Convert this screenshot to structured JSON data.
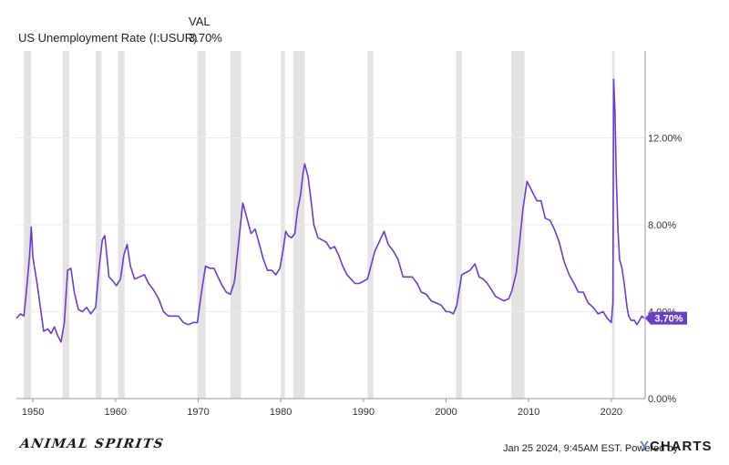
{
  "legend": {
    "header": "VAL",
    "series_name": "US Unemployment Rate (I:USUR)",
    "series_value": "3.70%"
  },
  "footer": {
    "timestamp_text": "Jan 25 2024, 9:45AM EST. Powered by",
    "ycharts_y": "Y",
    "ycharts_rest": "CHARTS",
    "brand_text": "ANIMAL SPIRITS"
  },
  "colors": {
    "line": "#6a3fc4",
    "recession": "#e3e3e3",
    "badge": "#6a3fc4",
    "grid": "#ececec"
  },
  "chart_data": {
    "type": "line",
    "x_unit": "year",
    "xlim": [
      1948,
      2024.1
    ],
    "ylim": [
      0,
      16
    ],
    "x_ticks": [
      {
        "label": "1950",
        "value": 1950
      },
      {
        "label": "1960",
        "value": 1960
      },
      {
        "label": "1970",
        "value": 1970
      },
      {
        "label": "1980",
        "value": 1980
      },
      {
        "label": "1990",
        "value": 1990
      },
      {
        "label": "2000",
        "value": 2000
      },
      {
        "label": "2010",
        "value": 2010
      },
      {
        "label": "2020",
        "value": 2020
      }
    ],
    "y_ticks": [
      {
        "label": "0.00%",
        "value": 0
      },
      {
        "label": "4.00%",
        "value": 4
      },
      {
        "label": "8.00%",
        "value": 8
      },
      {
        "label": "12.00%",
        "value": 12
      }
    ],
    "last_value_label": "3.70%",
    "last_value": 3.7,
    "recessions": [
      [
        1948.9,
        1949.8
      ],
      [
        1953.6,
        1954.4
      ],
      [
        1957.6,
        1958.3
      ],
      [
        1960.3,
        1961.1
      ],
      [
        1969.9,
        1970.9
      ],
      [
        1973.9,
        1975.2
      ],
      [
        1980.0,
        1980.5
      ],
      [
        1981.5,
        1982.9
      ],
      [
        1990.5,
        1991.2
      ],
      [
        2001.2,
        2001.9
      ],
      [
        2007.9,
        2009.5
      ],
      [
        2020.1,
        2020.4
      ]
    ],
    "series": [
      {
        "points": [
          [
            1948.0,
            3.7
          ],
          [
            1948.5,
            3.9
          ],
          [
            1948.9,
            3.8
          ],
          [
            1949.2,
            4.9
          ],
          [
            1949.6,
            6.6
          ],
          [
            1949.8,
            7.9
          ],
          [
            1950.0,
            6.5
          ],
          [
            1950.5,
            5.3
          ],
          [
            1950.9,
            4.2
          ],
          [
            1951.3,
            3.1
          ],
          [
            1951.8,
            3.2
          ],
          [
            1952.2,
            3.0
          ],
          [
            1952.6,
            3.3
          ],
          [
            1953.0,
            2.9
          ],
          [
            1953.4,
            2.6
          ],
          [
            1953.8,
            3.5
          ],
          [
            1954.2,
            5.9
          ],
          [
            1954.6,
            6.0
          ],
          [
            1955.0,
            4.9
          ],
          [
            1955.5,
            4.1
          ],
          [
            1956.0,
            4.0
          ],
          [
            1956.5,
            4.2
          ],
          [
            1957.0,
            3.9
          ],
          [
            1957.6,
            4.2
          ],
          [
            1958.0,
            6.0
          ],
          [
            1958.4,
            7.3
          ],
          [
            1958.7,
            7.5
          ],
          [
            1959.2,
            5.6
          ],
          [
            1959.7,
            5.4
          ],
          [
            1960.1,
            5.2
          ],
          [
            1960.6,
            5.5
          ],
          [
            1961.0,
            6.6
          ],
          [
            1961.4,
            7.1
          ],
          [
            1961.8,
            6.1
          ],
          [
            1962.3,
            5.5
          ],
          [
            1962.9,
            5.6
          ],
          [
            1963.5,
            5.7
          ],
          [
            1964.0,
            5.3
          ],
          [
            1964.6,
            5.0
          ],
          [
            1965.2,
            4.6
          ],
          [
            1965.8,
            4.0
          ],
          [
            1966.4,
            3.8
          ],
          [
            1967.0,
            3.8
          ],
          [
            1967.6,
            3.8
          ],
          [
            1968.2,
            3.5
          ],
          [
            1968.8,
            3.4
          ],
          [
            1969.4,
            3.5
          ],
          [
            1969.9,
            3.5
          ],
          [
            1970.4,
            4.9
          ],
          [
            1970.9,
            6.1
          ],
          [
            1971.4,
            6.0
          ],
          [
            1971.9,
            6.0
          ],
          [
            1972.4,
            5.6
          ],
          [
            1972.9,
            5.2
          ],
          [
            1973.4,
            4.9
          ],
          [
            1973.9,
            4.8
          ],
          [
            1974.4,
            5.4
          ],
          [
            1974.9,
            7.2
          ],
          [
            1975.4,
            9.0
          ],
          [
            1975.9,
            8.3
          ],
          [
            1976.4,
            7.6
          ],
          [
            1976.9,
            7.8
          ],
          [
            1977.4,
            7.1
          ],
          [
            1977.9,
            6.4
          ],
          [
            1978.4,
            5.9
          ],
          [
            1978.9,
            5.9
          ],
          [
            1979.4,
            5.7
          ],
          [
            1979.9,
            6.0
          ],
          [
            1980.3,
            6.9
          ],
          [
            1980.6,
            7.7
          ],
          [
            1980.9,
            7.5
          ],
          [
            1981.3,
            7.4
          ],
          [
            1981.7,
            7.6
          ],
          [
            1982.0,
            8.6
          ],
          [
            1982.4,
            9.4
          ],
          [
            1982.7,
            10.4
          ],
          [
            1982.9,
            10.8
          ],
          [
            1983.3,
            10.2
          ],
          [
            1983.7,
            9.0
          ],
          [
            1984.0,
            8.0
          ],
          [
            1984.5,
            7.4
          ],
          [
            1985.0,
            7.3
          ],
          [
            1985.5,
            7.2
          ],
          [
            1986.0,
            6.9
          ],
          [
            1986.5,
            7.0
          ],
          [
            1987.0,
            6.6
          ],
          [
            1987.5,
            6.1
          ],
          [
            1988.0,
            5.7
          ],
          [
            1988.5,
            5.5
          ],
          [
            1989.0,
            5.3
          ],
          [
            1989.5,
            5.3
          ],
          [
            1990.0,
            5.4
          ],
          [
            1990.5,
            5.5
          ],
          [
            1990.9,
            6.1
          ],
          [
            1991.4,
            6.8
          ],
          [
            1991.9,
            7.2
          ],
          [
            1992.5,
            7.7
          ],
          [
            1993.0,
            7.1
          ],
          [
            1993.6,
            6.8
          ],
          [
            1994.2,
            6.4
          ],
          [
            1994.8,
            5.6
          ],
          [
            1995.3,
            5.6
          ],
          [
            1995.9,
            5.6
          ],
          [
            1996.5,
            5.3
          ],
          [
            1997.0,
            4.9
          ],
          [
            1997.6,
            4.8
          ],
          [
            1998.2,
            4.5
          ],
          [
            1998.8,
            4.4
          ],
          [
            1999.4,
            4.3
          ],
          [
            2000.0,
            4.0
          ],
          [
            2000.4,
            4.0
          ],
          [
            2000.9,
            3.9
          ],
          [
            2001.3,
            4.3
          ],
          [
            2001.9,
            5.7
          ],
          [
            2002.4,
            5.8
          ],
          [
            2002.9,
            5.9
          ],
          [
            2003.5,
            6.2
          ],
          [
            2004.0,
            5.6
          ],
          [
            2004.5,
            5.5
          ],
          [
            2005.0,
            5.3
          ],
          [
            2005.5,
            5.0
          ],
          [
            2006.0,
            4.7
          ],
          [
            2006.5,
            4.6
          ],
          [
            2007.0,
            4.5
          ],
          [
            2007.6,
            4.6
          ],
          [
            2008.0,
            5.0
          ],
          [
            2008.5,
            5.8
          ],
          [
            2008.9,
            7.2
          ],
          [
            2009.3,
            8.7
          ],
          [
            2009.8,
            10.0
          ],
          [
            2010.2,
            9.7
          ],
          [
            2010.6,
            9.4
          ],
          [
            2011.0,
            9.1
          ],
          [
            2011.5,
            9.1
          ],
          [
            2012.0,
            8.3
          ],
          [
            2012.6,
            8.2
          ],
          [
            2013.1,
            7.8
          ],
          [
            2013.7,
            7.2
          ],
          [
            2014.3,
            6.3
          ],
          [
            2014.9,
            5.7
          ],
          [
            2015.5,
            5.3
          ],
          [
            2016.0,
            4.9
          ],
          [
            2016.6,
            4.9
          ],
          [
            2017.2,
            4.4
          ],
          [
            2017.8,
            4.2
          ],
          [
            2018.4,
            3.9
          ],
          [
            2019.0,
            4.0
          ],
          [
            2019.5,
            3.7
          ],
          [
            2020.0,
            3.5
          ],
          [
            2020.2,
            4.4
          ],
          [
            2020.28,
            14.7
          ],
          [
            2020.45,
            13.2
          ],
          [
            2020.6,
            10.2
          ],
          [
            2020.8,
            7.8
          ],
          [
            2021.0,
            6.4
          ],
          [
            2021.3,
            6.0
          ],
          [
            2021.6,
            5.2
          ],
          [
            2021.9,
            4.2
          ],
          [
            2022.1,
            3.8
          ],
          [
            2022.4,
            3.6
          ],
          [
            2022.8,
            3.6
          ],
          [
            2023.1,
            3.4
          ],
          [
            2023.4,
            3.6
          ],
          [
            2023.7,
            3.8
          ],
          [
            2023.95,
            3.7
          ]
        ]
      }
    ]
  }
}
